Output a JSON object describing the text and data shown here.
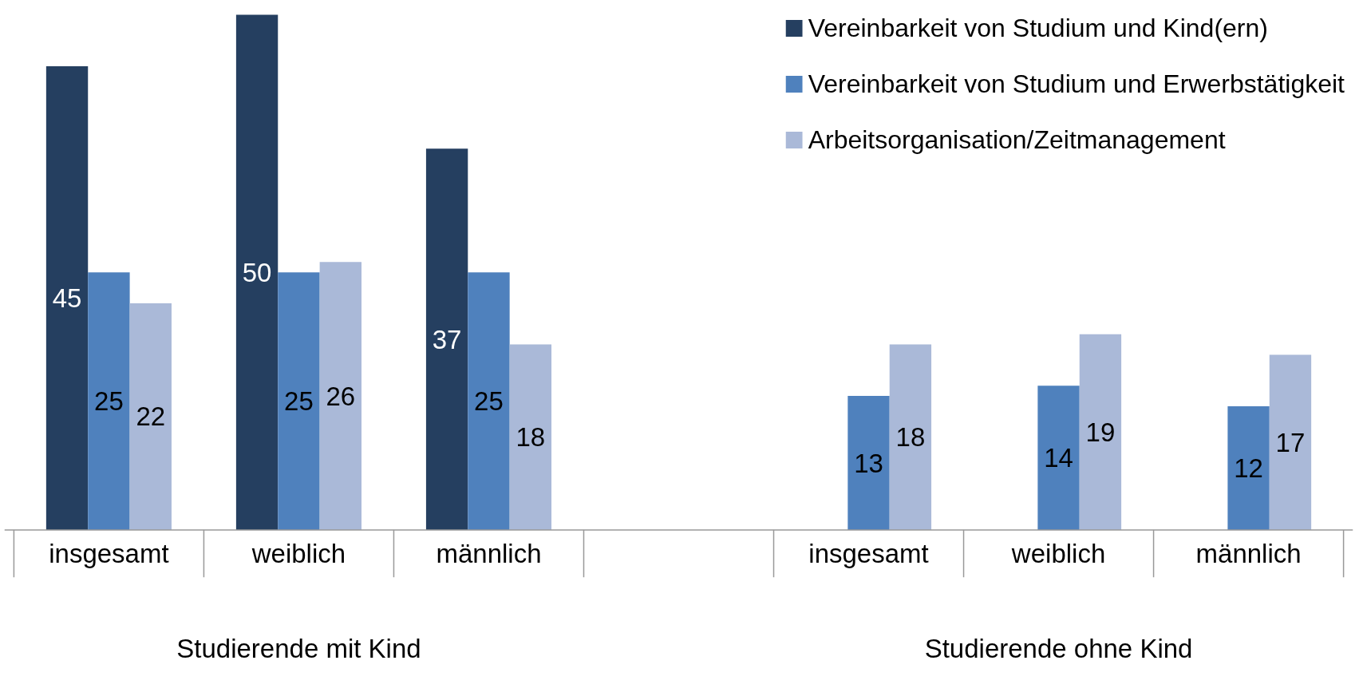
{
  "chart_data": {
    "type": "bar",
    "categories": [
      "insgesamt",
      "weiblich",
      "männlich",
      null,
      "insgesamt",
      "weiblich",
      "männlich"
    ],
    "series": [
      {
        "name": "Vereinbarkeit von Studium und Kind(ern)",
        "color": "#253f60",
        "values": [
          45,
          50,
          37,
          null,
          null,
          null,
          null
        ]
      },
      {
        "name": "Vereinbarkeit von Studium und Erwerbstätigkeit",
        "color": "#4f81bd",
        "values": [
          25,
          25,
          25,
          null,
          13,
          14,
          12
        ]
      },
      {
        "name": "Arbeitsorganisation/Zeitmanagement",
        "color": "#aab9d8",
        "values": [
          22,
          26,
          18,
          null,
          18,
          19,
          17
        ]
      }
    ],
    "annotations": [
      "Studierende mit Kind",
      "Studierende ohne Kind"
    ],
    "data_labels": true,
    "legend": "top right",
    "grid": false
  }
}
